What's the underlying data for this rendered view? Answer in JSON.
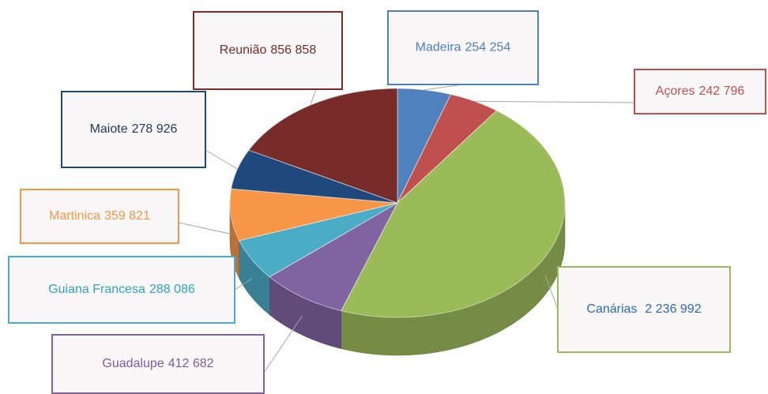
{
  "chart_data": {
    "type": "pie",
    "categories": [
      "Madeira",
      "Açores",
      "Canárias",
      "Guadalupe",
      "Guiana Francesa",
      "Martinica",
      "Maiote",
      "Reunião"
    ],
    "values": [
      254254,
      242796,
      2236992,
      412682,
      288086,
      359821,
      278926,
      856858
    ],
    "value_labels": [
      "254 254",
      "242 796",
      "2 236 992",
      "412 682",
      "288 086",
      "359 821",
      "278 926",
      "856 858"
    ],
    "colors": [
      "#4f81bd",
      "#c0504d",
      "#9bbb59",
      "#8064a2",
      "#4bacc6",
      "#f79646",
      "#1f497d",
      "#772c2a"
    ]
  }
}
